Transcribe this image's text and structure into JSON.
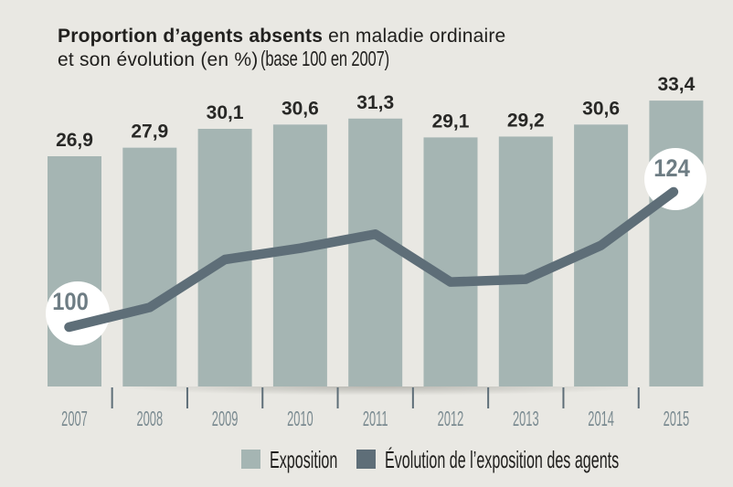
{
  "title": {
    "emphasis": "Proportion d’agents absents",
    "rest": " en maladie ordinaire",
    "line2": "et son évolution (en %)",
    "note": "(base 100 en 2007)"
  },
  "colors": {
    "background": "#e9e8e3",
    "bar": "#a5b5b3",
    "line": "#5e6e78",
    "year_label": "#7b8b91",
    "value_label": "#282826",
    "title_text": "#21201e",
    "circle_text": "#6e7d84",
    "annotation_circle": "#ffffff"
  },
  "chart_data": {
    "type": "bar",
    "title": "Proportion d’agents absents en maladie ordinaire et son évolution (en %) (base 100 en 2007)",
    "categories": [
      "2007",
      "2008",
      "2009",
      "2010",
      "2011",
      "2012",
      "2013",
      "2014",
      "2015"
    ],
    "series": [
      {
        "name": "Exposition",
        "type": "bar",
        "unit": "%",
        "values": [
          26.9,
          27.9,
          30.1,
          30.6,
          31.3,
          29.1,
          29.2,
          30.6,
          33.4
        ],
        "labels": [
          "26,9",
          "27,9",
          "30,1",
          "30,6",
          "31,3",
          "29,1",
          "29,2",
          "30,6",
          "33,4"
        ]
      },
      {
        "name": "Évolution de l’exposition des agents",
        "type": "line",
        "base": "base 100 en 2007",
        "values": [
          100,
          103.5,
          112,
          114,
          116.5,
          108,
          108.5,
          114.5,
          124
        ],
        "annotations": [
          {
            "index": 0,
            "text": "100"
          },
          {
            "index": 8,
            "text": "124"
          }
        ]
      }
    ],
    "xlabel": "",
    "ylabel": "",
    "ylim": [
      0,
      36
    ],
    "grid": false,
    "legend_position": "bottom"
  },
  "legend": {
    "items": [
      {
        "label": "Exposition",
        "swatch": "bar"
      },
      {
        "label": "Évolution de l’exposition des agents",
        "swatch": "line"
      }
    ]
  }
}
